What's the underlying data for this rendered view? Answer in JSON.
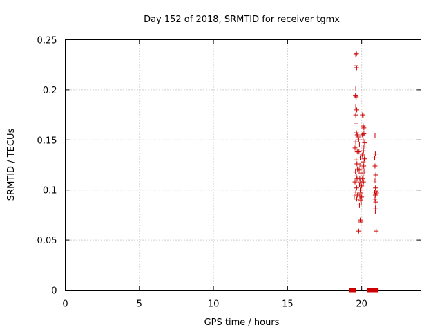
{
  "chart_data": {
    "type": "scatter",
    "title": "Day 152 of 2018, SRMTID for receiver tgmx",
    "xlabel": "GPS time / hours",
    "ylabel": "SRMTID / TECUs",
    "xlim": [
      0,
      24
    ],
    "ylim": [
      0,
      0.25
    ],
    "xticks": [
      0,
      5,
      10,
      15,
      20
    ],
    "xtick_labels": [
      "0",
      "5",
      "10",
      "15",
      "20"
    ],
    "yticks": [
      0,
      0.05,
      0.1,
      0.15,
      0.2,
      0.25
    ],
    "ytick_labels": [
      "0",
      "0.05",
      "0.1",
      "0.15",
      "0.2",
      "0.25"
    ],
    "grid": true,
    "marker_color": "#cc0000",
    "series": [
      {
        "name": "SRMTID",
        "marker": "plus",
        "points": [
          [
            19.6,
            0.235
          ],
          [
            19.65,
            0.236
          ],
          [
            19.62,
            0.224
          ],
          [
            19.66,
            0.222
          ],
          [
            19.6,
            0.201
          ],
          [
            19.58,
            0.194
          ],
          [
            19.63,
            0.193
          ],
          [
            19.6,
            0.183
          ],
          [
            19.67,
            0.18
          ],
          [
            19.6,
            0.175
          ],
          [
            19.62,
            0.166
          ],
          [
            19.65,
            0.157
          ],
          [
            19.7,
            0.155
          ],
          [
            19.75,
            0.153
          ],
          [
            19.6,
            0.148
          ],
          [
            19.55,
            0.142
          ],
          [
            19.7,
            0.138
          ],
          [
            19.63,
            0.13
          ],
          [
            19.68,
            0.126
          ],
          [
            19.72,
            0.121
          ],
          [
            19.58,
            0.118
          ],
          [
            19.64,
            0.114
          ],
          [
            19.69,
            0.111
          ],
          [
            19.55,
            0.108
          ],
          [
            19.66,
            0.102
          ],
          [
            19.6,
            0.098
          ],
          [
            19.72,
            0.095
          ],
          [
            19.5,
            0.094
          ],
          [
            19.67,
            0.091
          ],
          [
            19.62,
            0.087
          ],
          [
            19.8,
            0.15
          ],
          [
            19.85,
            0.145
          ],
          [
            19.82,
            0.138
          ],
          [
            19.9,
            0.132
          ],
          [
            19.88,
            0.125
          ],
          [
            19.83,
            0.12
          ],
          [
            19.95,
            0.117
          ],
          [
            19.87,
            0.112
          ],
          [
            19.92,
            0.108
          ],
          [
            19.85,
            0.105
          ],
          [
            19.9,
            0.1
          ],
          [
            19.95,
            0.097
          ],
          [
            19.88,
            0.094
          ],
          [
            19.93,
            0.09
          ],
          [
            19.97,
            0.087
          ],
          [
            20.0,
            0.093
          ],
          [
            19.9,
            0.07
          ],
          [
            19.95,
            0.068
          ],
          [
            19.8,
            0.059
          ],
          [
            19.85,
            0.085
          ],
          [
            20.05,
            0.175
          ],
          [
            20.1,
            0.174
          ],
          [
            20.1,
            0.164
          ],
          [
            20.15,
            0.162
          ],
          [
            20.05,
            0.155
          ],
          [
            20.1,
            0.15
          ],
          [
            20.2,
            0.147
          ],
          [
            20.15,
            0.143
          ],
          [
            20.12,
            0.139
          ],
          [
            20.05,
            0.135
          ],
          [
            20.18,
            0.131
          ],
          [
            20.1,
            0.128
          ],
          [
            20.14,
            0.124
          ],
          [
            20.08,
            0.121
          ],
          [
            20.16,
            0.118
          ],
          [
            20.1,
            0.114
          ],
          [
            20.05,
            0.111
          ],
          [
            20.12,
            0.108
          ],
          [
            20.0,
            0.104
          ],
          [
            20.15,
            0.156
          ],
          [
            20.9,
            0.154
          ],
          [
            20.92,
            0.136
          ],
          [
            20.88,
            0.132
          ],
          [
            20.9,
            0.124
          ],
          [
            20.95,
            0.115
          ],
          [
            20.9,
            0.109
          ],
          [
            20.93,
            0.102
          ],
          [
            20.97,
            0.099
          ],
          [
            20.88,
            0.098
          ],
          [
            20.92,
            0.095
          ],
          [
            21.0,
            0.097
          ],
          [
            20.9,
            0.091
          ],
          [
            20.95,
            0.088
          ],
          [
            20.93,
            0.082
          ],
          [
            20.92,
            0.078
          ],
          [
            20.98,
            0.059
          ]
        ]
      },
      {
        "name": "zero-level",
        "marker": "square",
        "points": [
          [
            19.3,
            0
          ],
          [
            19.35,
            0
          ],
          [
            19.4,
            0
          ],
          [
            19.45,
            0
          ],
          [
            19.5,
            0
          ],
          [
            20.5,
            0
          ],
          [
            20.55,
            0
          ],
          [
            20.6,
            0
          ],
          [
            20.65,
            0
          ],
          [
            20.7,
            0
          ],
          [
            20.75,
            0
          ],
          [
            21.0,
            0
          ]
        ]
      }
    ]
  }
}
